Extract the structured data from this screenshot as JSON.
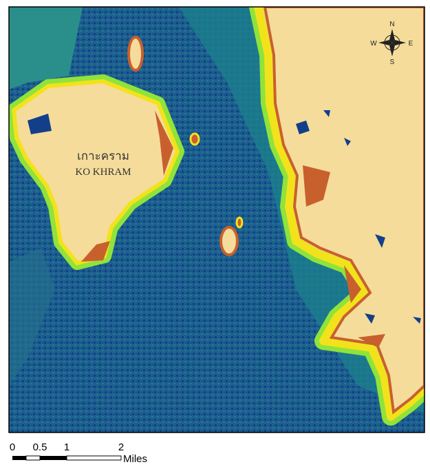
{
  "map": {
    "island_name_thai": "เกาะคราม",
    "island_name": "KO KHRAM",
    "compass": {
      "north": "N",
      "south": "S",
      "east": "E",
      "west": "W"
    },
    "scale_bar": {
      "labels": [
        "0",
        "0.5",
        "1",
        "2"
      ],
      "unit": "Miles"
    }
  }
}
